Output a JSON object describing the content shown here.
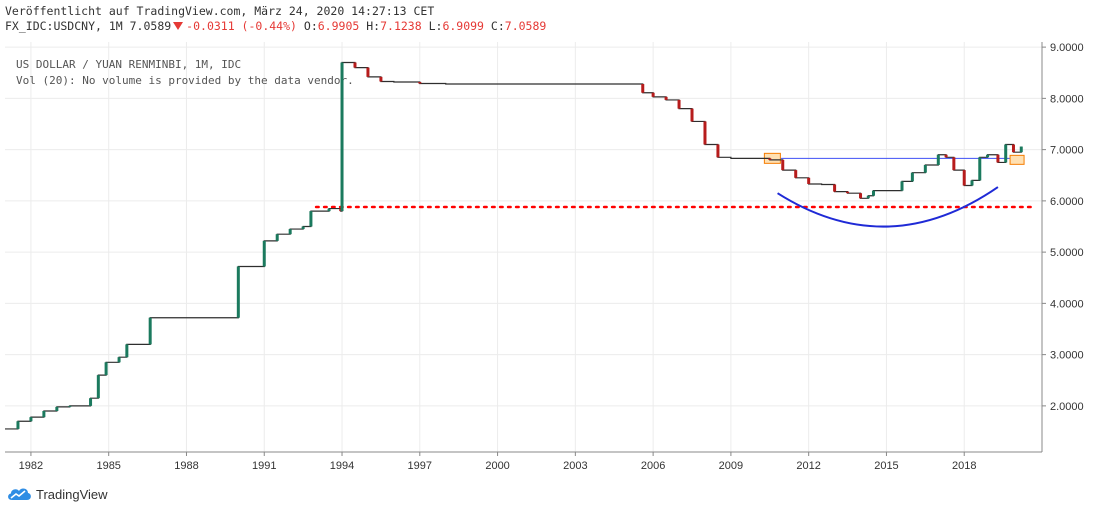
{
  "header": {
    "line1": "Veröffentlicht auf TradingView.com, März 24, 2020 14:27:13 CET",
    "symbol": "FX_IDC:USDCNY, 1M 7.0589",
    "change": "-0.0311 (-0.44%)",
    "o_label": "O:",
    "o_value": "6.9905",
    "h_label": "H:",
    "h_value": "7.1238",
    "l_label": "L:",
    "l_value": "6.9099",
    "c_label": "C:",
    "c_value": "7.0589"
  },
  "legend": {
    "title": "US DOLLAR / YUAN RENMINBI, 1M, IDC",
    "vol": "Vol (20): No volume is provided by the data vendor."
  },
  "footer": {
    "brand": "TradingView",
    "logo": "tradingview-cloud-icon"
  },
  "colors": {
    "up": "#26a69a",
    "down": "#ef5350",
    "hline": "#3f51f5",
    "dotted": "#ff0000",
    "arc": "#1f2ad6",
    "candle_up": "#1b7a5e",
    "candle_down": "#b71c1c"
  },
  "chart_data": {
    "type": "line",
    "title": "US DOLLAR / YUAN RENMINBI, 1M, IDC",
    "xlabel": "",
    "ylabel": "",
    "x_ticks": [
      "1982",
      "1985",
      "1988",
      "1991",
      "1994",
      "1997",
      "2000",
      "2003",
      "2006",
      "2009",
      "2012",
      "2015",
      "2018"
    ],
    "y_ticks": [
      "2.0000",
      "3.0000",
      "4.0000",
      "5.0000",
      "6.0000",
      "7.0000",
      "8.0000",
      "9.0000"
    ],
    "ylim": [
      1.1,
      9.1
    ],
    "xlim": [
      1981.0,
      2021.0
    ],
    "grid": true,
    "series": [
      {
        "x": [
          1981.0,
          1981.5,
          1982.0,
          1982.5,
          1983.0,
          1983.5,
          1984.0,
          1984.3,
          1984.6,
          1984.9,
          1985.1,
          1985.4,
          1985.7,
          1986.0,
          1986.4,
          1986.6,
          1987.0,
          1988.0,
          1989.0,
          1989.9,
          1990.0,
          1990.9,
          1991.0,
          1991.5,
          1992.0,
          1992.5,
          1992.8,
          1993.0,
          1993.5,
          1993.95,
          1994.0,
          1994.5,
          1995.0,
          1995.5,
          1996.0,
          1997.0,
          1998.0,
          1999.0,
          2000.0,
          2001.0,
          2002.0,
          2003.0,
          2004.0,
          2005.0,
          2005.55,
          2005.6,
          2006.0,
          2006.5,
          2007.0,
          2007.5,
          2008.0,
          2008.5,
          2009.0,
          2010.0,
          2010.5,
          2011.0,
          2011.5,
          2012.0,
          2012.5,
          2013.0,
          2013.5,
          2014.0,
          2014.3,
          2014.5,
          2015.0,
          2015.6,
          2016.0,
          2016.5,
          2017.0,
          2017.3,
          2017.6,
          2018.0,
          2018.3,
          2018.6,
          2018.9,
          2019.3,
          2019.6,
          2019.9,
          2020.2
        ],
        "values": [
          1.55,
          1.7,
          1.78,
          1.9,
          1.98,
          2.0,
          2.0,
          2.15,
          2.6,
          2.85,
          2.85,
          2.95,
          3.2,
          3.2,
          3.2,
          3.72,
          3.72,
          3.72,
          3.72,
          3.72,
          4.72,
          4.72,
          5.22,
          5.35,
          5.45,
          5.5,
          5.8,
          5.8,
          5.85,
          5.8,
          8.7,
          8.6,
          8.42,
          8.33,
          8.32,
          8.29,
          8.28,
          8.28,
          8.28,
          8.28,
          8.28,
          8.28,
          8.28,
          8.28,
          8.28,
          8.11,
          8.03,
          7.97,
          7.8,
          7.55,
          7.1,
          6.85,
          6.83,
          6.83,
          6.8,
          6.6,
          6.45,
          6.33,
          6.32,
          6.18,
          6.15,
          6.05,
          6.1,
          6.2,
          6.2,
          6.38,
          6.55,
          6.7,
          6.9,
          6.85,
          6.6,
          6.3,
          6.4,
          6.85,
          6.9,
          6.75,
          7.1,
          6.95,
          7.06
        ]
      }
    ],
    "annotations": {
      "horizontal_line": {
        "y": 6.83,
        "x_from": 2010.6,
        "x_to": 2020.0
      },
      "dotted_line": {
        "y": 5.88,
        "x_from": 1993.0,
        "x_to": 2020.7
      },
      "arc": {
        "x_from": 2010.8,
        "x_to": 2019.3,
        "y_start": 6.15,
        "y_bottom": 5.5,
        "y_end": 6.27
      }
    }
  }
}
